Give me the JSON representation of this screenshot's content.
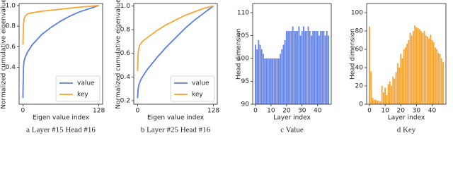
{
  "chart_data": [
    {
      "type": "line",
      "title": "a Layer #15 Head #16",
      "xlabel": "Eigen value index",
      "ylabel": "Normalized cumulative eigenvalue",
      "x": [
        0,
        1,
        2,
        4,
        8,
        16,
        32,
        48,
        64,
        80,
        96,
        112,
        128
      ],
      "series": [
        {
          "name": "value",
          "color": "#5a7ee6",
          "values": [
            0.1,
            0.4,
            0.46,
            0.5,
            0.55,
            0.62,
            0.72,
            0.79,
            0.85,
            0.9,
            0.94,
            0.97,
            1.0
          ]
        },
        {
          "name": "key",
          "color": "#f7a535",
          "values": [
            0.62,
            0.82,
            0.87,
            0.9,
            0.92,
            0.93,
            0.945,
            0.955,
            0.965,
            0.975,
            0.985,
            0.993,
            1.0
          ]
        }
      ],
      "xlim": [
        -6.4,
        134.4
      ],
      "xticks": [
        0,
        128
      ],
      "ylim": [
        0.04,
        1.02
      ],
      "yticks": [
        0.4,
        0.6,
        0.8,
        {
          "value": 1,
          "label": "1.0"
        }
      ],
      "legend": "lower right"
    },
    {
      "type": "line",
      "title": "b Layer #25 Head #16",
      "xlabel": "Eigen value index",
      "ylabel": "Normalized cumulative eigenvalue",
      "x": [
        0,
        1,
        2,
        4,
        8,
        16,
        32,
        48,
        64,
        80,
        96,
        112,
        128
      ],
      "series": [
        {
          "name": "value",
          "color": "#5a7ee6",
          "values": [
            0.22,
            0.3,
            0.33,
            0.36,
            0.4,
            0.46,
            0.56,
            0.65,
            0.73,
            0.81,
            0.88,
            0.94,
            1.0
          ]
        },
        {
          "name": "key",
          "color": "#f7a535",
          "values": [
            0.45,
            0.6,
            0.64,
            0.67,
            0.7,
            0.73,
            0.79,
            0.84,
            0.88,
            0.92,
            0.95,
            0.98,
            1.0
          ]
        }
      ],
      "xlim": [
        -6.4,
        134.4
      ],
      "xticks": [
        0,
        128
      ],
      "ylim": [
        0.17,
        1.02
      ],
      "yticks": [
        0.2,
        0.4,
        0.6,
        0.8,
        {
          "value": 1,
          "label": "1.0"
        }
      ],
      "legend": "lower right"
    },
    {
      "type": "bar",
      "title": "c Value",
      "xlabel": "Layer index",
      "ylabel": "Head dimension",
      "color": "#6685ea",
      "x": [
        0,
        1,
        2,
        3,
        4,
        5,
        6,
        7,
        8,
        9,
        10,
        11,
        12,
        13,
        14,
        15,
        16,
        17,
        18,
        19,
        20,
        21,
        22,
        23,
        24,
        25,
        26,
        27,
        28,
        29,
        30,
        31,
        32,
        33,
        34,
        35,
        36,
        37,
        38,
        39,
        40,
        41,
        42,
        43,
        44,
        45,
        46,
        47
      ],
      "values": [
        103,
        102,
        104,
        103,
        102,
        101,
        100,
        100,
        100,
        100,
        100,
        100,
        100,
        100,
        100,
        100,
        101,
        102,
        103,
        104,
        106,
        106,
        106,
        106,
        107,
        106,
        106,
        106,
        107,
        105,
        106,
        107,
        106,
        106,
        107,
        106,
        105,
        106,
        106,
        106,
        106,
        105,
        106,
        106,
        106,
        105,
        106,
        105
      ],
      "xlim": [
        -1.8,
        48.8
      ],
      "xticks": [
        0,
        10,
        20,
        30,
        40
      ],
      "ylim": [
        90,
        112
      ],
      "yticks": [
        90,
        95,
        100,
        105,
        110
      ]
    },
    {
      "type": "bar",
      "title": "d Key",
      "xlabel": "Layer index",
      "ylabel": "Head dimension",
      "color": "#f7a535",
      "x": [
        0,
        1,
        2,
        3,
        4,
        5,
        6,
        7,
        8,
        9,
        10,
        11,
        12,
        13,
        14,
        15,
        16,
        17,
        18,
        19,
        20,
        21,
        22,
        23,
        24,
        25,
        26,
        27,
        28,
        29,
        30,
        31,
        32,
        33,
        34,
        35,
        36,
        37,
        38,
        39,
        40,
        41,
        42,
        43,
        44,
        45,
        46,
        47
      ],
      "values": [
        85,
        36,
        7,
        5,
        5,
        4,
        4,
        3,
        20,
        13,
        18,
        10,
        22,
        25,
        20,
        30,
        28,
        35,
        45,
        40,
        55,
        50,
        60,
        62,
        66,
        70,
        78,
        75,
        80,
        86,
        84,
        83,
        82,
        80,
        78,
        80,
        75,
        74,
        72,
        76,
        70,
        68,
        62,
        60,
        56,
        55,
        50,
        46
      ],
      "xlim": [
        -1.8,
        48.8
      ],
      "xticks": [
        0,
        10,
        20,
        30,
        40
      ],
      "ylim": [
        0,
        110
      ],
      "yticks": [
        0,
        20,
        40,
        60,
        80,
        100
      ]
    }
  ]
}
